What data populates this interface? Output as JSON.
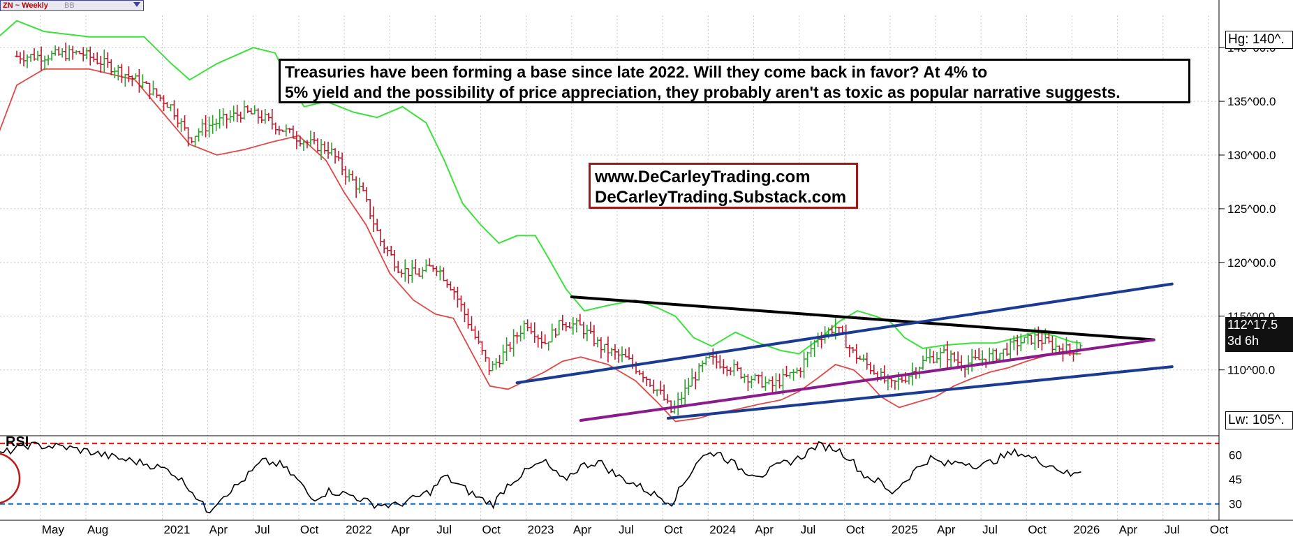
{
  "header": {
    "symbol": "ZN ~ Weekly",
    "source": "BB"
  },
  "annotations": {
    "note_line1": "Treasuries have been forming a base since late 2022. Will they come back in favor? At 4% to",
    "note_line2": "5% yield and the possibility of price appreciation, they probably aren't as toxic as popular narrative suggests.",
    "site_line1": "www.DeCarleyTrading.com",
    "site_line2": "DeCarleyTrading.Substack.com"
  },
  "price_axis": {
    "high_label": "Hg: 140^.",
    "low_label": "Lw: 105^.",
    "last_price": "112^17.5",
    "countdown": "3d 6h"
  },
  "colors": {
    "up_bar": "#2ca02c",
    "down_bar": "#c0182c",
    "upper_band": "#3de03d",
    "lower_band": "#e04848",
    "resistance": "#000000",
    "channel": "#1a3a94",
    "support": "#8b1a8b",
    "rsi_high": "#e02020",
    "rsi_low": "#1a6ad0"
  },
  "chart_data": [
    {
      "type": "line",
      "title": "",
      "x_labels": [
        "May",
        "Aug",
        "2021",
        "Apr",
        "Jul",
        "Oct",
        "2022",
        "Apr",
        "Jul",
        "Oct",
        "2023",
        "Apr",
        "Jul",
        "Oct",
        "2024",
        "Apr",
        "Jul",
        "Oct",
        "2025",
        "Apr",
        "Jul",
        "Oct",
        "2026",
        "Apr",
        "Jul",
        "Oct"
      ],
      "y_ticks": [
        "110^00.0",
        "115^00.0",
        "120^00.0",
        "125^00.0",
        "130^00.0",
        "135^00.0",
        "140^00.0"
      ],
      "ylim": [
        104,
        143
      ],
      "series": [
        {
          "kind": "price_bars",
          "points": [
            [
              2020.33,
              139.2
            ],
            [
              2020.55,
              139.5
            ],
            [
              2020.75,
              138.0
            ],
            [
              2020.9,
              136.5
            ],
            [
              2021.05,
              134.5
            ],
            [
              2021.15,
              131.5
            ],
            [
              2021.22,
              132.5
            ],
            [
              2021.32,
              133.2
            ],
            [
              2021.45,
              134.0
            ],
            [
              2021.55,
              133.5
            ],
            [
              2021.7,
              132.0
            ],
            [
              2021.82,
              131.0
            ],
            [
              2021.92,
              130.5
            ],
            [
              2022.0,
              128.5
            ],
            [
              2022.1,
              126.5
            ],
            [
              2022.2,
              122.0
            ],
            [
              2022.3,
              119.5
            ],
            [
              2022.4,
              118.8
            ],
            [
              2022.5,
              119.8
            ],
            [
              2022.6,
              117.5
            ],
            [
              2022.72,
              113.0
            ],
            [
              2022.8,
              110.0
            ],
            [
              2022.9,
              112.0
            ],
            [
              2023.0,
              114.5
            ],
            [
              2023.1,
              112.5
            ],
            [
              2023.2,
              114.5
            ],
            [
              2023.3,
              114.0
            ],
            [
              2023.42,
              112.0
            ],
            [
              2023.55,
              111.0
            ],
            [
              2023.65,
              109.5
            ],
            [
              2023.75,
              107.5
            ],
            [
              2023.8,
              106.0
            ],
            [
              2023.9,
              108.8
            ],
            [
              2024.0,
              111.0
            ],
            [
              2024.1,
              110.5
            ],
            [
              2024.2,
              109.5
            ],
            [
              2024.35,
              108.5
            ],
            [
              2024.5,
              110.0
            ],
            [
              2024.6,
              113.0
            ],
            [
              2024.7,
              114.0
            ],
            [
              2024.8,
              111.5
            ],
            [
              2024.92,
              109.8
            ],
            [
              2025.0,
              108.5
            ],
            [
              2025.1,
              109.5
            ],
            [
              2025.2,
              111.0
            ],
            [
              2025.3,
              111.5
            ],
            [
              2025.4,
              110.5
            ],
            [
              2025.5,
              111.0
            ],
            [
              2025.6,
              111.5
            ],
            [
              2025.7,
              112.5
            ],
            [
              2025.8,
              113.0
            ],
            [
              2025.9,
              112.2
            ],
            [
              2026.0,
              111.8
            ],
            [
              2026.05,
              112.5
            ]
          ]
        },
        {
          "kind": "upper_band",
          "points": [
            [
              2020.1,
              141.0
            ],
            [
              2020.2,
              142.5
            ],
            [
              2020.35,
              141.5
            ],
            [
              2020.6,
              141.0
            ],
            [
              2020.9,
              141.0
            ],
            [
              2021.05,
              138.5
            ],
            [
              2021.15,
              137.0
            ],
            [
              2021.3,
              138.5
            ],
            [
              2021.5,
              140.0
            ],
            [
              2021.62,
              139.5
            ],
            [
              2021.72,
              136.0
            ],
            [
              2021.78,
              134.5
            ],
            [
              2021.9,
              135.0
            ],
            [
              2022.05,
              134.0
            ],
            [
              2022.18,
              133.5
            ],
            [
              2022.32,
              134.5
            ],
            [
              2022.45,
              133.0
            ],
            [
              2022.55,
              129.5
            ],
            [
              2022.65,
              125.5
            ],
            [
              2022.75,
              123.5
            ],
            [
              2022.85,
              121.8
            ],
            [
              2022.95,
              122.5
            ],
            [
              2023.05,
              122.5
            ],
            [
              2023.12,
              120.5
            ],
            [
              2023.22,
              117.5
            ],
            [
              2023.32,
              115.5
            ],
            [
              2023.45,
              116.0
            ],
            [
              2023.6,
              116.5
            ],
            [
              2023.72,
              115.8
            ],
            [
              2023.82,
              115.0
            ],
            [
              2023.92,
              113.0
            ],
            [
              2024.02,
              112.2
            ],
            [
              2024.15,
              113.5
            ],
            [
              2024.28,
              112.5
            ],
            [
              2024.4,
              111.8
            ],
            [
              2024.5,
              111.5
            ],
            [
              2024.62,
              113.0
            ],
            [
              2024.72,
              114.5
            ],
            [
              2024.82,
              115.5
            ],
            [
              2024.92,
              115.0
            ],
            [
              2025.0,
              114.5
            ],
            [
              2025.08,
              113.0
            ],
            [
              2025.18,
              112.0
            ],
            [
              2025.3,
              112.3
            ],
            [
              2025.45,
              112.5
            ],
            [
              2025.58,
              112.5
            ],
            [
              2025.7,
              113.0
            ],
            [
              2025.8,
              113.5
            ],
            [
              2025.9,
              113.2
            ],
            [
              2026.0,
              112.6
            ],
            [
              2026.05,
              112.5
            ]
          ]
        },
        {
          "kind": "lower_band",
          "points": [
            [
              2020.1,
              132.0
            ],
            [
              2020.2,
              136.5
            ],
            [
              2020.35,
              138.0
            ],
            [
              2020.6,
              138.0
            ],
            [
              2020.85,
              137.0
            ],
            [
              2021.0,
              134.0
            ],
            [
              2021.15,
              131.0
            ],
            [
              2021.3,
              130.0
            ],
            [
              2021.45,
              130.5
            ],
            [
              2021.6,
              131.2
            ],
            [
              2021.75,
              131.8
            ],
            [
              2021.9,
              129.5
            ],
            [
              2022.0,
              126.5
            ],
            [
              2022.12,
              123.5
            ],
            [
              2022.25,
              119.0
            ],
            [
              2022.38,
              116.5
            ],
            [
              2022.5,
              115.2
            ],
            [
              2022.6,
              114.8
            ],
            [
              2022.72,
              111.0
            ],
            [
              2022.8,
              108.5
            ],
            [
              2022.9,
              108.2
            ],
            [
              2023.0,
              109.0
            ],
            [
              2023.1,
              109.8
            ],
            [
              2023.2,
              110.8
            ],
            [
              2023.3,
              111.2
            ],
            [
              2023.45,
              110.5
            ],
            [
              2023.6,
              109.0
            ],
            [
              2023.72,
              107.0
            ],
            [
              2023.82,
              105.2
            ],
            [
              2023.95,
              105.5
            ],
            [
              2024.05,
              106.0
            ],
            [
              2024.15,
              106.3
            ],
            [
              2024.28,
              106.8
            ],
            [
              2024.4,
              107.2
            ],
            [
              2024.5,
              108.0
            ],
            [
              2024.6,
              109.2
            ],
            [
              2024.7,
              110.5
            ],
            [
              2024.8,
              110.0
            ],
            [
              2024.88,
              108.8
            ],
            [
              2024.95,
              107.5
            ],
            [
              2025.05,
              106.5
            ],
            [
              2025.15,
              107.0
            ],
            [
              2025.25,
              107.5
            ],
            [
              2025.35,
              108.5
            ],
            [
              2025.45,
              109.2
            ],
            [
              2025.55,
              109.8
            ],
            [
              2025.65,
              110.2
            ],
            [
              2025.75,
              110.8
            ],
            [
              2025.85,
              111.3
            ],
            [
              2025.95,
              111.5
            ],
            [
              2026.05,
              111.5
            ]
          ]
        },
        {
          "kind": "trendline_resistance",
          "points": [
            [
              2023.25,
              116.8
            ],
            [
              2026.45,
              112.8
            ]
          ]
        },
        {
          "kind": "channel_upper",
          "points": [
            [
              2022.95,
              108.8
            ],
            [
              2026.55,
              118.0
            ]
          ]
        },
        {
          "kind": "channel_lower",
          "points": [
            [
              2023.78,
              105.5
            ],
            [
              2026.55,
              110.3
            ]
          ]
        },
        {
          "kind": "support_line",
          "points": [
            [
              2023.3,
              105.3
            ],
            [
              2026.45,
              112.8
            ]
          ]
        }
      ]
    },
    {
      "type": "line",
      "title": "RSI",
      "y_ticks": [
        30,
        45,
        60
      ],
      "ylim": [
        20,
        70
      ],
      "levels": [
        67,
        30
      ],
      "series": [
        {
          "kind": "rsi",
          "points": [
            [
              2020.05,
              58
            ],
            [
              2020.25,
              66
            ],
            [
              2020.45,
              65
            ],
            [
              2020.6,
              62
            ],
            [
              2020.75,
              58
            ],
            [
              2020.9,
              55
            ],
            [
              2021.05,
              50
            ],
            [
              2021.15,
              40
            ],
            [
              2021.25,
              25
            ],
            [
              2021.32,
              34
            ],
            [
              2021.42,
              42
            ],
            [
              2021.55,
              56
            ],
            [
              2021.65,
              54
            ],
            [
              2021.75,
              44
            ],
            [
              2021.82,
              33
            ],
            [
              2021.92,
              38
            ],
            [
              2022.05,
              35
            ],
            [
              2022.15,
              30
            ],
            [
              2022.28,
              29
            ],
            [
              2022.38,
              33
            ],
            [
              2022.48,
              38
            ],
            [
              2022.55,
              47
            ],
            [
              2022.65,
              40
            ],
            [
              2022.75,
              33
            ],
            [
              2022.82,
              30
            ],
            [
              2022.9,
              42
            ],
            [
              2023.0,
              50
            ],
            [
              2023.1,
              56
            ],
            [
              2023.2,
              44
            ],
            [
              2023.3,
              53
            ],
            [
              2023.4,
              56
            ],
            [
              2023.5,
              47
            ],
            [
              2023.6,
              42
            ],
            [
              2023.7,
              36
            ],
            [
              2023.8,
              31
            ],
            [
              2023.88,
              45
            ],
            [
              2023.95,
              58
            ],
            [
              2024.05,
              62
            ],
            [
              2024.12,
              56
            ],
            [
              2024.2,
              50
            ],
            [
              2024.3,
              48
            ],
            [
              2024.4,
              54
            ],
            [
              2024.5,
              58
            ],
            [
              2024.6,
              66
            ],
            [
              2024.7,
              64
            ],
            [
              2024.78,
              58
            ],
            [
              2024.85,
              48
            ],
            [
              2024.95,
              43
            ],
            [
              2025.0,
              36
            ],
            [
              2025.08,
              44
            ],
            [
              2025.15,
              52
            ],
            [
              2025.22,
              58
            ],
            [
              2025.3,
              54
            ],
            [
              2025.4,
              56
            ],
            [
              2025.5,
              53
            ],
            [
              2025.6,
              58
            ],
            [
              2025.7,
              62
            ],
            [
              2025.8,
              57
            ],
            [
              2025.9,
              53
            ],
            [
              2026.0,
              47
            ],
            [
              2026.05,
              51
            ]
          ]
        }
      ]
    }
  ]
}
